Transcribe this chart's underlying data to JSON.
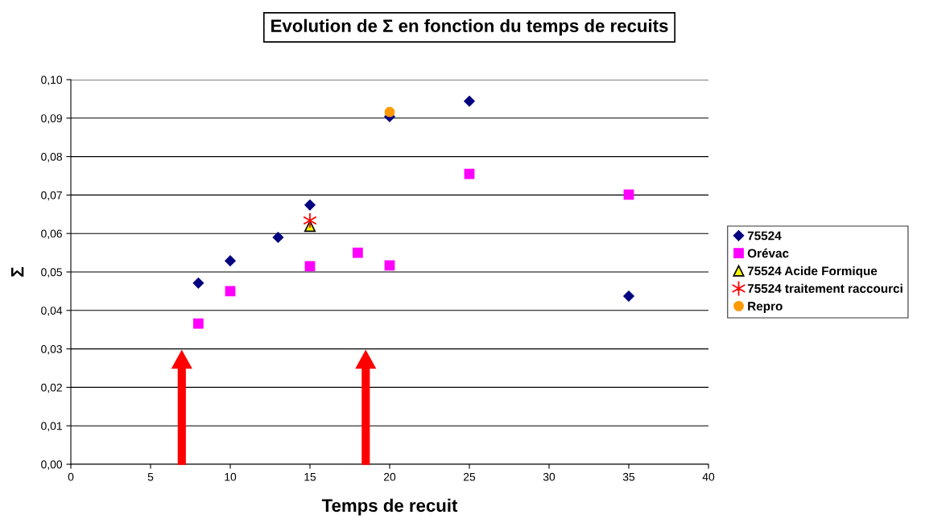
{
  "chart_data": {
    "type": "scatter",
    "title": "Evolution de Σ en fonction du temps de recuits",
    "xlabel": "Temps de recuit",
    "ylabel": "Σ",
    "series": [
      {
        "name": "75524",
        "color": "#000080",
        "marker": "diamond",
        "x": [
          8,
          10,
          13,
          15,
          20,
          25,
          35
        ],
        "values": [
          0.0471,
          0.0529,
          0.059,
          0.0674,
          0.0904,
          0.0944,
          0.0437
        ]
      },
      {
        "name": "Orévac",
        "color": "#ff00ff",
        "marker": "square",
        "x": [
          8,
          10,
          15,
          18,
          20,
          25,
          35
        ],
        "values": [
          0.0366,
          0.045,
          0.0515,
          0.055,
          0.0517,
          0.0755,
          0.0701
        ]
      },
      {
        "name": "75524 Acide Formique",
        "color": "#ffff00",
        "marker": "triangle",
        "x": [
          15
        ],
        "values": [
          0.0619
        ]
      },
      {
        "name": "75524 traitement raccourci",
        "color": "#ff0000",
        "marker": "cross",
        "x": [
          15
        ],
        "values": [
          0.0634
        ]
      },
      {
        "name": "Repro",
        "color": "#ff9900",
        "marker": "circle",
        "x": [
          20
        ],
        "values": [
          0.0916
        ]
      }
    ],
    "xlim": [
      0,
      40
    ],
    "xticks": [
      0,
      5,
      10,
      15,
      20,
      25,
      30,
      35,
      40
    ],
    "ylim": [
      0,
      0.1
    ],
    "yticks": [
      {
        "value": 0,
        "label": "0,00"
      },
      {
        "value": 0.01,
        "label": "0,01"
      },
      {
        "value": 0.02,
        "label": "0,02"
      },
      {
        "value": 0.03,
        "label": "0,03"
      },
      {
        "value": 0.04,
        "label": "0,04"
      },
      {
        "value": 0.05,
        "label": "0,05"
      },
      {
        "value": 0.06,
        "label": "0,06"
      },
      {
        "value": 0.07,
        "label": "0,07"
      },
      {
        "value": 0.08,
        "label": "0,08"
      },
      {
        "value": 0.09,
        "label": "0,09"
      },
      {
        "value": 0.1,
        "label": "0,10"
      }
    ],
    "grid": "y",
    "legend": "right"
  }
}
